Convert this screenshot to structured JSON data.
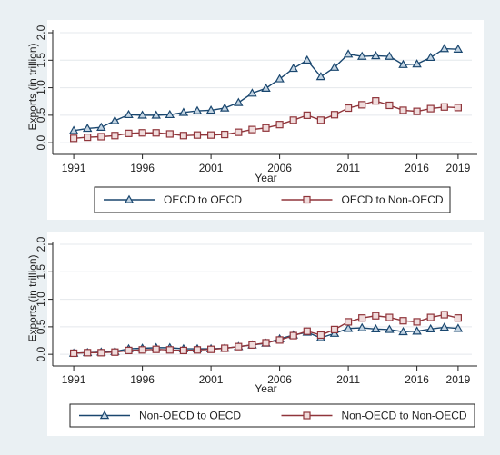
{
  "page": {
    "background": "#eaf0f3"
  },
  "chart_data": [
    {
      "type": "line",
      "xlabel": "Year",
      "ylabel": "Exports (in trillion)",
      "xlim": [
        1990,
        2020
      ],
      "ylim": [
        -0.08,
        2.05
      ],
      "x_ticks": [
        1991,
        1996,
        2001,
        2006,
        2011,
        2016,
        2019
      ],
      "y_ticks": [
        0.0,
        0.5,
        1.0,
        1.5,
        2.0
      ],
      "y_tick_labels": [
        "0.0",
        "0.5",
        "1.0",
        "1.5",
        "2.0"
      ],
      "x": [
        1991,
        1992,
        1993,
        1994,
        1995,
        1996,
        1997,
        1998,
        1999,
        2000,
        2001,
        2002,
        2003,
        2004,
        2005,
        2006,
        2007,
        2008,
        2009,
        2010,
        2011,
        2012,
        2013,
        2014,
        2015,
        2016,
        2017,
        2018,
        2019
      ],
      "grid": "horizontal",
      "legend_position": "bottom",
      "series": [
        {
          "name": "OECD to OECD",
          "color": "#1a476f",
          "marker": "triangle",
          "values": [
            0.22,
            0.26,
            0.28,
            0.4,
            0.51,
            0.5,
            0.5,
            0.51,
            0.55,
            0.58,
            0.59,
            0.63,
            0.73,
            0.9,
            0.99,
            1.16,
            1.35,
            1.5,
            1.2,
            1.37,
            1.61,
            1.57,
            1.58,
            1.57,
            1.42,
            1.43,
            1.55,
            1.71,
            1.7
          ]
        },
        {
          "name": "OECD to Non-OECD",
          "color": "#90353b",
          "marker": "square",
          "values": [
            0.08,
            0.1,
            0.11,
            0.13,
            0.17,
            0.18,
            0.18,
            0.16,
            0.13,
            0.14,
            0.14,
            0.15,
            0.19,
            0.24,
            0.27,
            0.33,
            0.41,
            0.5,
            0.41,
            0.51,
            0.63,
            0.69,
            0.76,
            0.68,
            0.59,
            0.57,
            0.62,
            0.65,
            0.64
          ]
        }
      ]
    },
    {
      "type": "line",
      "xlabel": "Year",
      "ylabel": "Exports (in trillion)",
      "xlim": [
        1990,
        2020
      ],
      "ylim": [
        -0.08,
        2.05
      ],
      "x_ticks": [
        1991,
        1996,
        2001,
        2006,
        2011,
        2016,
        2019
      ],
      "y_ticks": [
        0.0,
        0.5,
        1.0,
        1.5,
        2.0
      ],
      "y_tick_labels": [
        "0.0",
        "0.5",
        "1.0",
        "1.5",
        "2.0"
      ],
      "x": [
        1991,
        1992,
        1993,
        1994,
        1995,
        1996,
        1997,
        1998,
        1999,
        2000,
        2001,
        2002,
        2003,
        2004,
        2005,
        2006,
        2007,
        2008,
        2009,
        2010,
        2011,
        2012,
        2013,
        2014,
        2015,
        2016,
        2017,
        2018,
        2019
      ],
      "grid": "horizontal",
      "legend_position": "bottom",
      "series": [
        {
          "name": "Non-OECD to OECD",
          "color": "#1a476f",
          "marker": "triangle",
          "values": [
            0.02,
            0.03,
            0.04,
            0.05,
            0.1,
            0.11,
            0.12,
            0.12,
            0.1,
            0.1,
            0.1,
            0.11,
            0.14,
            0.17,
            0.2,
            0.28,
            0.35,
            0.4,
            0.3,
            0.38,
            0.47,
            0.48,
            0.46,
            0.45,
            0.41,
            0.42,
            0.46,
            0.49,
            0.47
          ]
        },
        {
          "name": "Non-OECD to Non-OECD",
          "color": "#90353b",
          "marker": "square",
          "values": [
            0.02,
            0.03,
            0.03,
            0.04,
            0.07,
            0.08,
            0.09,
            0.08,
            0.07,
            0.08,
            0.09,
            0.11,
            0.14,
            0.17,
            0.21,
            0.26,
            0.34,
            0.42,
            0.35,
            0.45,
            0.59,
            0.66,
            0.7,
            0.67,
            0.61,
            0.59,
            0.67,
            0.72,
            0.66
          ]
        }
      ]
    }
  ]
}
